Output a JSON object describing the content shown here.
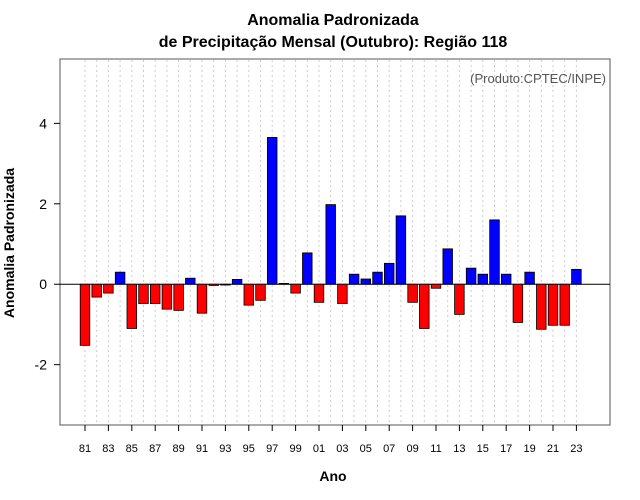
{
  "chart_data": {
    "type": "bar",
    "title": "Anomalia Padronizada",
    "subtitle": "de Precipitação Mensal (Outubro): Região 118",
    "xlabel": "Ano",
    "ylabel": "Anomalia Padronizada",
    "credit": "(Produto:CPTEC/INPE)",
    "ylim": [
      -3.5,
      5.6
    ],
    "yticks": [
      -2,
      0,
      2,
      4
    ],
    "grid": "vertical dotted",
    "colors": {
      "positive": "#0000ff",
      "negative": "#ff0000",
      "outline": "#000000"
    },
    "categories": [
      "81",
      "82",
      "83",
      "84",
      "85",
      "86",
      "87",
      "88",
      "89",
      "90",
      "91",
      "92",
      "93",
      "94",
      "95",
      "96",
      "97",
      "98",
      "99",
      "00",
      "01",
      "02",
      "03",
      "04",
      "05",
      "06",
      "07",
      "08",
      "09",
      "10",
      "11",
      "12",
      "13",
      "14",
      "15",
      "16",
      "17",
      "18",
      "19",
      "20",
      "21",
      "22",
      "23"
    ],
    "tick_labels": [
      "81",
      "83",
      "85",
      "87",
      "89",
      "91",
      "93",
      "95",
      "97",
      "99",
      "01",
      "03",
      "05",
      "07",
      "09",
      "11",
      "13",
      "15",
      "17",
      "19",
      "21",
      "23"
    ],
    "values": [
      -1.52,
      -0.32,
      -0.22,
      0.3,
      -1.1,
      -0.48,
      -0.48,
      -0.62,
      -0.65,
      0.15,
      -0.72,
      -0.03,
      -0.02,
      0.12,
      -0.52,
      -0.4,
      3.65,
      0.02,
      -0.22,
      0.78,
      -0.45,
      1.98,
      -0.48,
      0.25,
      0.13,
      0.3,
      0.52,
      1.7,
      -0.45,
      -1.1,
      -0.1,
      0.88,
      -0.75,
      0.4,
      0.25,
      1.6,
      0.25,
      -0.95,
      0.3,
      -1.12,
      -1.02,
      -1.02,
      0.37
    ]
  }
}
